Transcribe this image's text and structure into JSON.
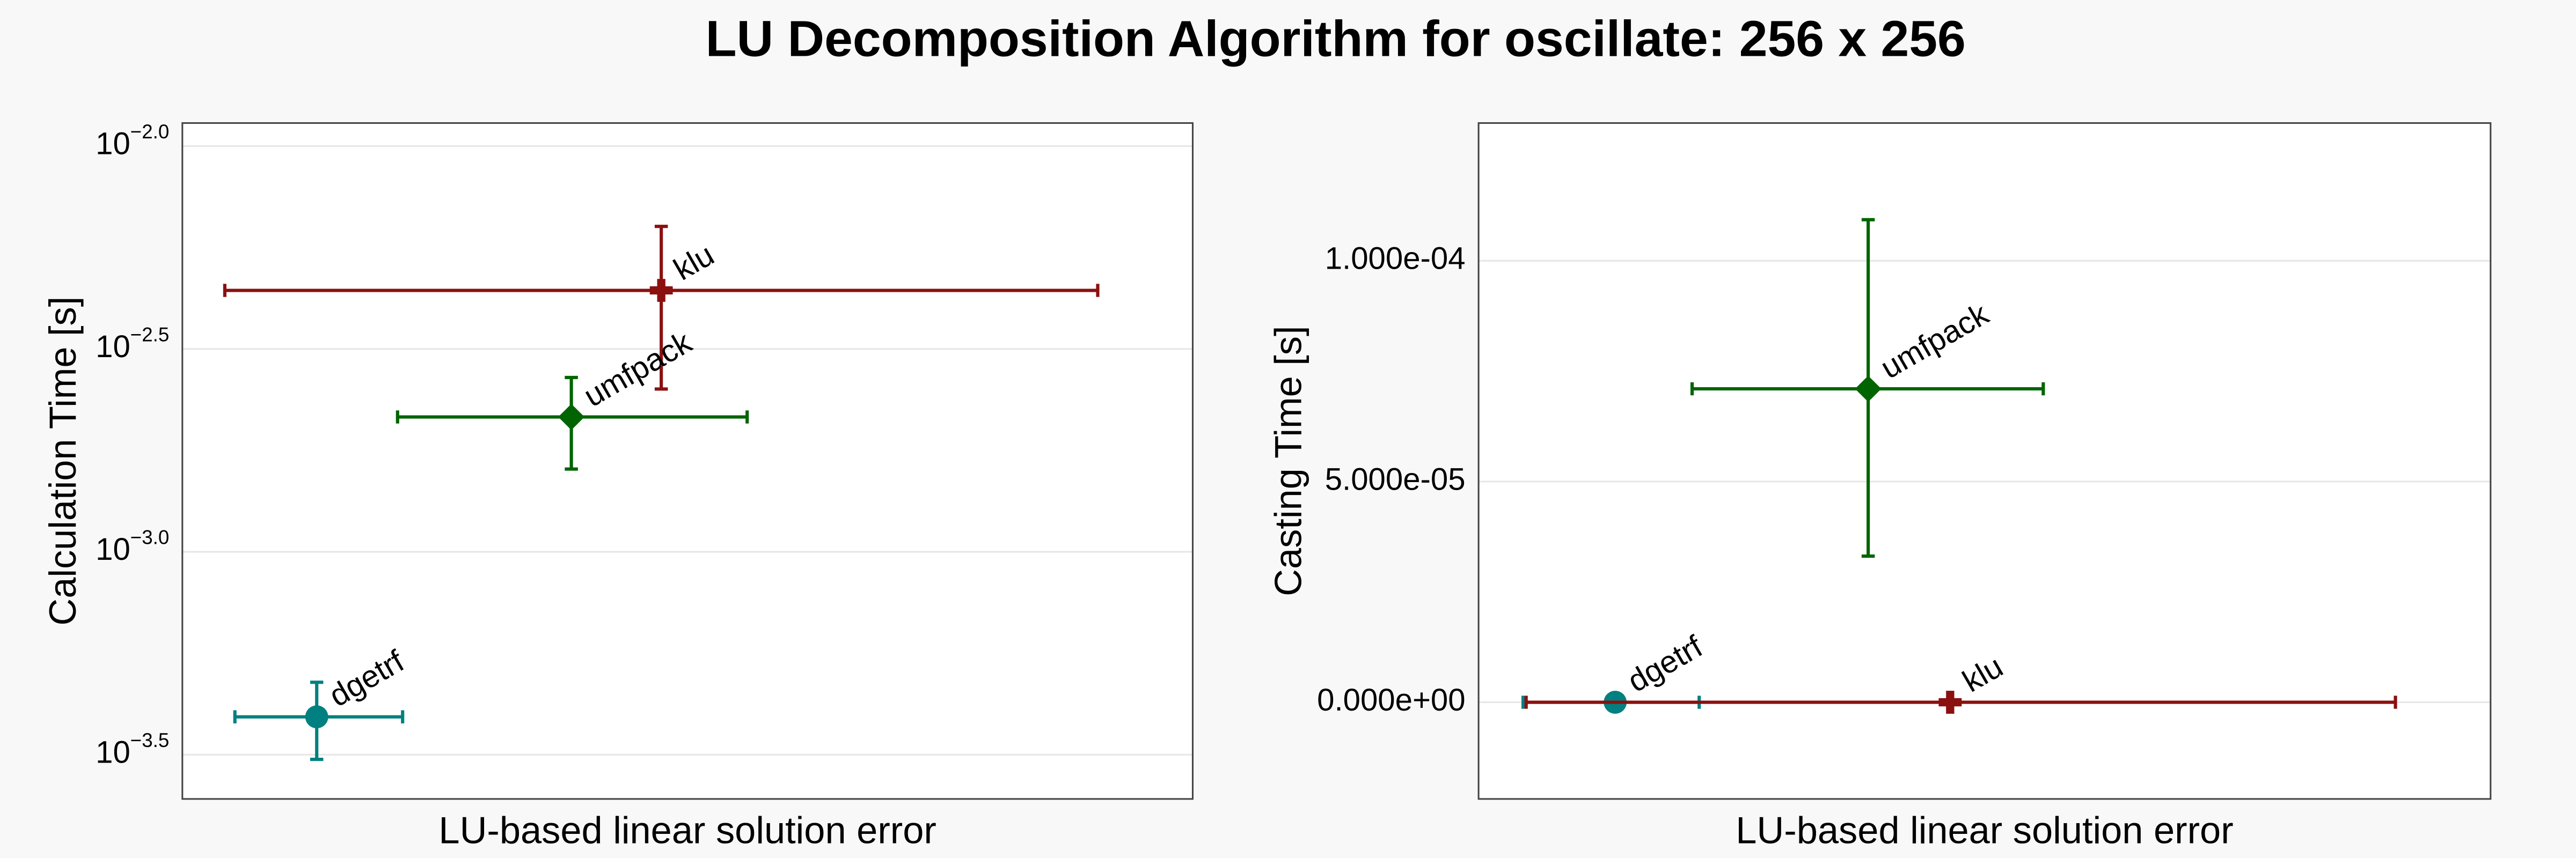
{
  "title": "LU Decomposition Algorithm for oscillate: 256 x 256",
  "chart_data": [
    {
      "type": "scatter",
      "xlabel": "LU-based linear solution error",
      "ylabel": "Calculation Time [s]",
      "ylog": true,
      "grid": true,
      "xlim": [
        0,
        1
      ],
      "ylim": [
        0.000246,
        0.0114
      ],
      "yticks": [
        {
          "value": 0.01,
          "label": "10−2.0"
        },
        {
          "value": 0.00316228,
          "label": "10−2.5"
        },
        {
          "value": 0.001,
          "label": "10−3.0"
        },
        {
          "value": 0.000316228,
          "label": "10−3.5"
        }
      ],
      "series": [
        {
          "name": "klu",
          "color": "#8b1010",
          "marker": "cross",
          "x": [
            0.474
          ],
          "x_low": [
            0.042
          ],
          "x_high": [
            0.906
          ],
          "values": [
            0.00441
          ],
          "y_low": [
            0.00252
          ],
          "y_high": [
            0.00634
          ]
        },
        {
          "name": "umfpack",
          "color": "#006400",
          "marker": "diamond",
          "x": [
            0.385
          ],
          "x_low": [
            0.213
          ],
          "x_high": [
            0.559
          ],
          "values": [
            0.00215
          ],
          "y_low": [
            0.0016
          ],
          "y_high": [
            0.00269
          ]
        },
        {
          "name": "dgetrf",
          "color": "#008080",
          "marker": "circle",
          "x": [
            0.133
          ],
          "x_low": [
            0.052
          ],
          "x_high": [
            0.218
          ],
          "values": [
            0.000392
          ],
          "y_low": [
            0.000308
          ],
          "y_high": [
            0.000477
          ]
        }
      ]
    },
    {
      "type": "scatter",
      "xlabel": "LU-based linear solution error",
      "ylabel": "Casting Time [s]",
      "ylog": false,
      "grid": true,
      "xlim": [
        0,
        1
      ],
      "ylim": [
        -2.19e-05,
        0.0001312
      ],
      "yticks": [
        {
          "value": 0,
          "label": "0.000e+00"
        },
        {
          "value": 5e-05,
          "label": "5.000e-05"
        },
        {
          "value": 0.0001,
          "label": "1.000e-04"
        }
      ],
      "series": [
        {
          "name": "umfpack",
          "color": "#006400",
          "marker": "diamond",
          "x": [
            0.385
          ],
          "x_low": [
            0.211
          ],
          "x_high": [
            0.558
          ],
          "values": [
            7.1e-05
          ],
          "y_low": [
            3.31e-05
          ],
          "y_high": [
            0.0001093
          ]
        },
        {
          "name": "dgetrf",
          "color": "#008080",
          "marker": "circle",
          "x": [
            0.135
          ],
          "x_low": [
            0.044
          ],
          "x_high": [
            0.218
          ],
          "values": [
            0
          ],
          "y_low": [
            0
          ],
          "y_high": [
            0
          ]
        },
        {
          "name": "klu",
          "color": "#8b1010",
          "marker": "cross",
          "x": [
            0.466
          ],
          "x_low": [
            0.047
          ],
          "x_high": [
            0.906
          ],
          "values": [
            0
          ],
          "y_low": [
            0
          ],
          "y_high": [
            0
          ]
        }
      ]
    }
  ]
}
